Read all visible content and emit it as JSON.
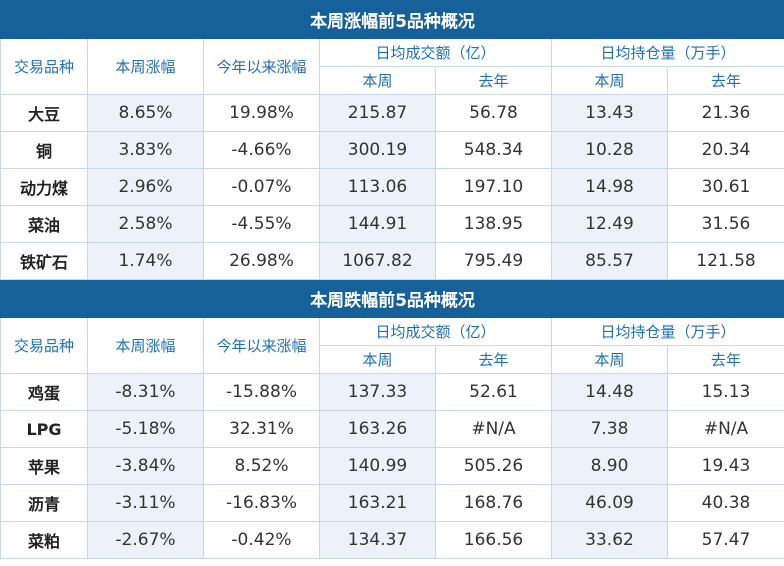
{
  "top_table": {
    "title": "本周涨幅前5品种概况",
    "headers": {
      "product": "交易品种",
      "week_change": "本周涨幅",
      "ytd_change": "今年以来涨幅",
      "avg_turnover": "日均成交额（亿）",
      "avg_open_interest": "日均持仓量（万手）",
      "this_week": "本周",
      "last_year": "去年"
    },
    "rows": [
      {
        "name": "大豆",
        "week": "8.65%",
        "ytd": "19.98%",
        "turnover_week": "215.87",
        "turnover_ly": "56.78",
        "oi_week": "13.43",
        "oi_ly": "21.36"
      },
      {
        "name": "铜",
        "week": "3.83%",
        "ytd": "-4.66%",
        "turnover_week": "300.19",
        "turnover_ly": "548.34",
        "oi_week": "10.28",
        "oi_ly": "20.34"
      },
      {
        "name": "动力煤",
        "week": "2.96%",
        "ytd": "-0.07%",
        "turnover_week": "113.06",
        "turnover_ly": "197.10",
        "oi_week": "14.98",
        "oi_ly": "30.61"
      },
      {
        "name": "菜油",
        "week": "2.58%",
        "ytd": "-4.55%",
        "turnover_week": "144.91",
        "turnover_ly": "138.95",
        "oi_week": "12.49",
        "oi_ly": "31.56"
      },
      {
        "name": "铁矿石",
        "week": "1.74%",
        "ytd": "26.98%",
        "turnover_week": "1067.82",
        "turnover_ly": "795.49",
        "oi_week": "85.57",
        "oi_ly": "121.58"
      }
    ]
  },
  "bottom_table": {
    "title": "本周跌幅前5品种概况",
    "headers": {
      "product": "交易品种",
      "week_change": "本周涨幅",
      "ytd_change": "今年以来涨幅",
      "avg_turnover": "日均成交额（亿）",
      "avg_open_interest": "日均持仓量（万手）",
      "this_week": "本周",
      "last_year": "去年"
    },
    "rows": [
      {
        "name": "鸡蛋",
        "week": "-8.31%",
        "ytd": "-15.88%",
        "turnover_week": "137.33",
        "turnover_ly": "52.61",
        "oi_week": "14.48",
        "oi_ly": "15.13"
      },
      {
        "name": "LPG",
        "week": "-5.18%",
        "ytd": "32.31%",
        "turnover_week": "163.26",
        "turnover_ly": "#N/A",
        "oi_week": "7.38",
        "oi_ly": "#N/A"
      },
      {
        "name": "苹果",
        "week": "-3.84%",
        "ytd": "8.52%",
        "turnover_week": "140.99",
        "turnover_ly": "505.26",
        "oi_week": "8.90",
        "oi_ly": "19.43"
      },
      {
        "name": "沥青",
        "week": "-3.11%",
        "ytd": "-16.83%",
        "turnover_week": "163.21",
        "turnover_ly": "168.76",
        "oi_week": "46.09",
        "oi_ly": "40.38"
      },
      {
        "name": "菜粕",
        "week": "-2.67%",
        "ytd": "-0.42%",
        "turnover_week": "134.37",
        "turnover_ly": "166.56",
        "oi_week": "33.62",
        "oi_ly": "57.47"
      }
    ]
  }
}
